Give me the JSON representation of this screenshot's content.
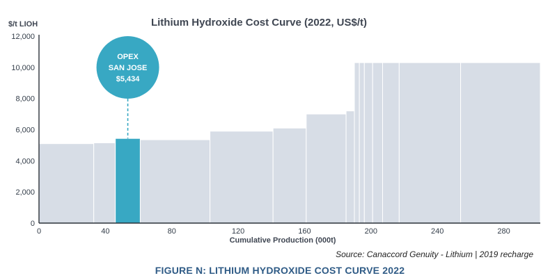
{
  "chart_data": {
    "type": "bar",
    "title": "Lithium Hydroxide Cost Curve (2022, US$/t)",
    "ylabel": "$/t LIOH",
    "xlabel": "Cumulative Production (000t)",
    "xlim": [
      0,
      302
    ],
    "ylim": [
      0,
      12000
    ],
    "x_ticks": [
      0,
      40,
      80,
      120,
      160,
      200,
      240,
      280
    ],
    "y_ticks": [
      0,
      2000,
      4000,
      6000,
      8000,
      10000,
      12000
    ],
    "y_tick_labels": [
      "0",
      "2,000",
      "4,000",
      "6,000",
      "8,000",
      "10,000",
      "12,000"
    ],
    "grid": false,
    "colors": {
      "bar": "#d7dde6",
      "highlight": "#38a8c3",
      "axis": "#2a3138"
    },
    "segments": [
      {
        "x0": 0,
        "x1": 33,
        "value": 5100
      },
      {
        "x0": 33,
        "x1": 46,
        "value": 5150
      },
      {
        "x0": 46,
        "x1": 61,
        "value": 5434,
        "highlight": true
      },
      {
        "x0": 61,
        "x1": 103,
        "value": 5350
      },
      {
        "x0": 103,
        "x1": 141,
        "value": 5900
      },
      {
        "x0": 141,
        "x1": 161,
        "value": 6100
      },
      {
        "x0": 161,
        "x1": 185,
        "value": 7000
      },
      {
        "x0": 185,
        "x1": 190,
        "value": 7200
      },
      {
        "x0": 190,
        "x1": 193,
        "value": 10300
      },
      {
        "x0": 193,
        "x1": 196,
        "value": 10300
      },
      {
        "x0": 196,
        "x1": 201,
        "value": 10300
      },
      {
        "x0": 201,
        "x1": 207,
        "value": 10300
      },
      {
        "x0": 207,
        "x1": 217,
        "value": 10300
      },
      {
        "x0": 217,
        "x1": 254,
        "value": 10300
      },
      {
        "x0": 254,
        "x1": 302,
        "value": 10300
      }
    ],
    "annotation": {
      "lines": [
        "OPEX",
        "SAN JOSE",
        "$5,434"
      ],
      "segment_index": 2
    }
  },
  "source": "Source: Canaccord Genuity - Lithium | 2019 recharge",
  "caption": "FIGURE N: LITHIUM HYDROXIDE COST CURVE 2022"
}
